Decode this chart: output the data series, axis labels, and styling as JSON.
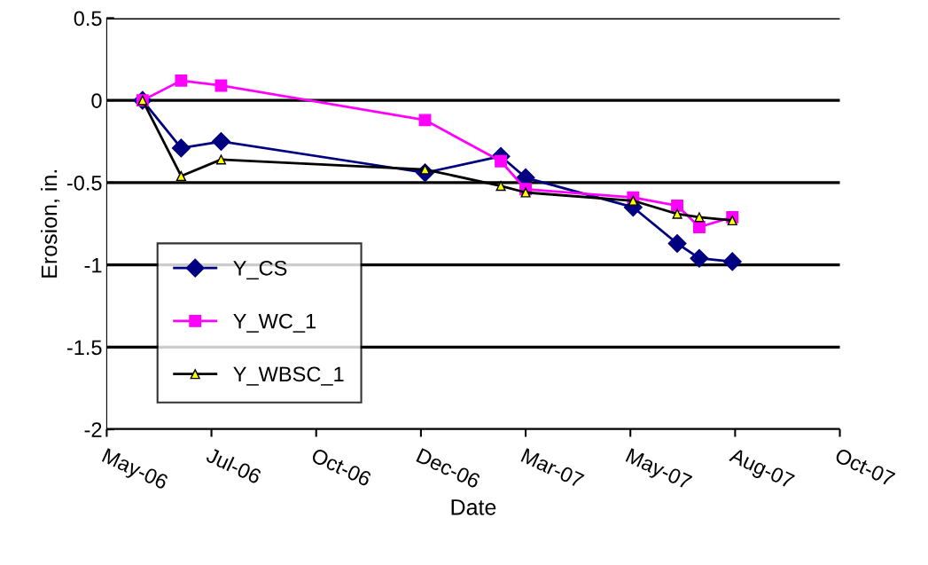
{
  "chart_data": {
    "type": "line",
    "xlabel": "Date",
    "ylabel": "Erosion, in.",
    "x": [
      "2006-06-10",
      "2006-07-08",
      "2006-08-06",
      "2007-01-01",
      "2007-02-25",
      "2007-03-15",
      "2007-06-01",
      "2007-07-03",
      "2007-07-19",
      "2007-08-12"
    ],
    "series": [
      {
        "name": "Y_CS",
        "color": "#000080",
        "marker": "diamond",
        "values": [
          0,
          -0.29,
          -0.25,
          -0.44,
          -0.34,
          -0.47,
          -0.65,
          -0.87,
          -0.96,
          -0.98
        ]
      },
      {
        "name": "Y_WC_1",
        "color": "#ff00ff",
        "marker": "square",
        "values": [
          0,
          0.12,
          0.09,
          -0.12,
          -0.37,
          -0.54,
          -0.59,
          -0.64,
          -0.77,
          -0.71
        ]
      },
      {
        "name": "Y_WBSC_1",
        "color": "#000000",
        "marker": "triangle",
        "values": [
          0,
          -0.46,
          -0.36,
          -0.42,
          -0.52,
          -0.56,
          -0.61,
          -0.69,
          -0.71,
          -0.73
        ]
      }
    ],
    "xlim": [
      "2006-05-15",
      "2007-10-29"
    ],
    "xticks": [
      {
        "value": "2006-05-15",
        "label": "May-06"
      },
      {
        "value": "2006-07-30",
        "label": "Jul-06"
      },
      {
        "value": "2006-10-14",
        "label": "Oct-06"
      },
      {
        "value": "2006-12-29",
        "label": "Dec-06"
      },
      {
        "value": "2007-03-15",
        "label": "Mar-07"
      },
      {
        "value": "2007-05-30",
        "label": "May-07"
      },
      {
        "value": "2007-08-14",
        "label": "Aug-07"
      },
      {
        "value": "2007-10-29",
        "label": "Oct-07"
      }
    ],
    "ylim": [
      -2,
      0.5
    ],
    "yticks": [
      -2,
      -1.5,
      -1,
      -0.5,
      0,
      0.5
    ],
    "grid": "y",
    "legend": "bottom left",
    "line_style": "solid"
  }
}
